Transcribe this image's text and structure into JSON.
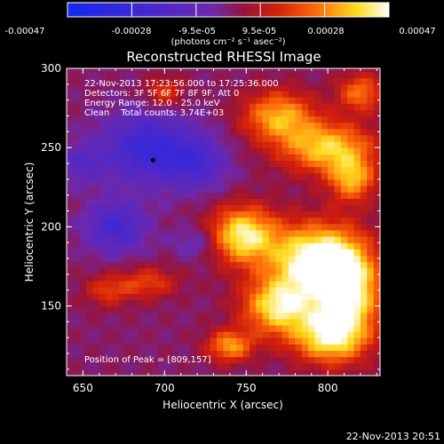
{
  "chart_data": {
    "type": "heatmap",
    "title": "Reconstructed RHESSI Image",
    "xlabel": "Heliocentric X (arcsec)",
    "ylabel": "Heliocentric Y (arcsec)",
    "xlim": [
      640,
      832
    ],
    "ylim": [
      106,
      300
    ],
    "xticks": [
      650,
      700,
      750,
      800
    ],
    "yticks": [
      150,
      200,
      250,
      300
    ],
    "colorbar": {
      "tick_labels": [
        "-0.00047",
        "-0.00028",
        "-9.5e-05",
        "9.5e-05",
        "0.00028",
        "0.00047"
      ],
      "range": [
        -0.00047,
        0.00047
      ],
      "units_label": "(photons cm⁻² s⁻¹ asec⁻²)"
    },
    "annotations": [
      "22-Nov-2013 17:23:56.000 to 17:25:36.000",
      "Detectors: 3F 5F 6F 7F 8F 9F, Att 0",
      "Energy Range: 12.0 - 25.0 keV",
      "Clean    Total counts: 3.74E+03"
    ],
    "peak_label": "Position of Peak = [809,157]",
    "peak_position": [
      809,
      157
    ],
    "blobs": [
      {
        "x": 748,
        "y": 195,
        "rx": 20,
        "ry": 18,
        "v": 0.00042
      },
      {
        "x": 790,
        "y": 180,
        "rx": 26,
        "ry": 22,
        "v": 0.00045
      },
      {
        "x": 812,
        "y": 160,
        "rx": 20,
        "ry": 30,
        "v": 0.00047
      },
      {
        "x": 770,
        "y": 150,
        "rx": 22,
        "ry": 18,
        "v": 0.0004
      },
      {
        "x": 740,
        "y": 125,
        "rx": 14,
        "ry": 10,
        "v": 0.0003
      },
      {
        "x": 800,
        "y": 130,
        "rx": 22,
        "ry": 16,
        "v": 0.00035
      },
      {
        "x": 770,
        "y": 270,
        "rx": 22,
        "ry": 16,
        "v": 0.00032
      },
      {
        "x": 800,
        "y": 250,
        "rx": 28,
        "ry": 16,
        "v": 0.00036
      },
      {
        "x": 815,
        "y": 230,
        "rx": 14,
        "ry": 14,
        "v": 0.0003
      },
      {
        "x": 820,
        "y": 285,
        "rx": 14,
        "ry": 12,
        "v": 0.00025
      },
      {
        "x": 700,
        "y": 285,
        "rx": 12,
        "ry": 10,
        "v": 0.00018
      },
      {
        "x": 690,
        "y": 165,
        "rx": 18,
        "ry": 10,
        "v": 0.00018
      },
      {
        "x": 665,
        "y": 160,
        "rx": 14,
        "ry": 10,
        "v": 0.00016
      },
      {
        "x": 690,
        "y": 250,
        "rx": 28,
        "ry": 22,
        "v": -0.0003
      },
      {
        "x": 720,
        "y": 240,
        "rx": 18,
        "ry": 16,
        "v": -0.0002
      },
      {
        "x": 670,
        "y": 200,
        "rx": 18,
        "ry": 16,
        "v": -0.00025
      },
      {
        "x": 650,
        "y": 240,
        "rx": 12,
        "ry": 12,
        "v": -0.00015
      },
      {
        "x": 720,
        "y": 190,
        "rx": 14,
        "ry": 10,
        "v": -0.00012
      }
    ]
  },
  "footer": {
    "timestamp": "22-Nov-2013 20:51"
  },
  "colors": {
    "background": "#000000",
    "axes": "#ffffff",
    "marker": "#000000"
  }
}
